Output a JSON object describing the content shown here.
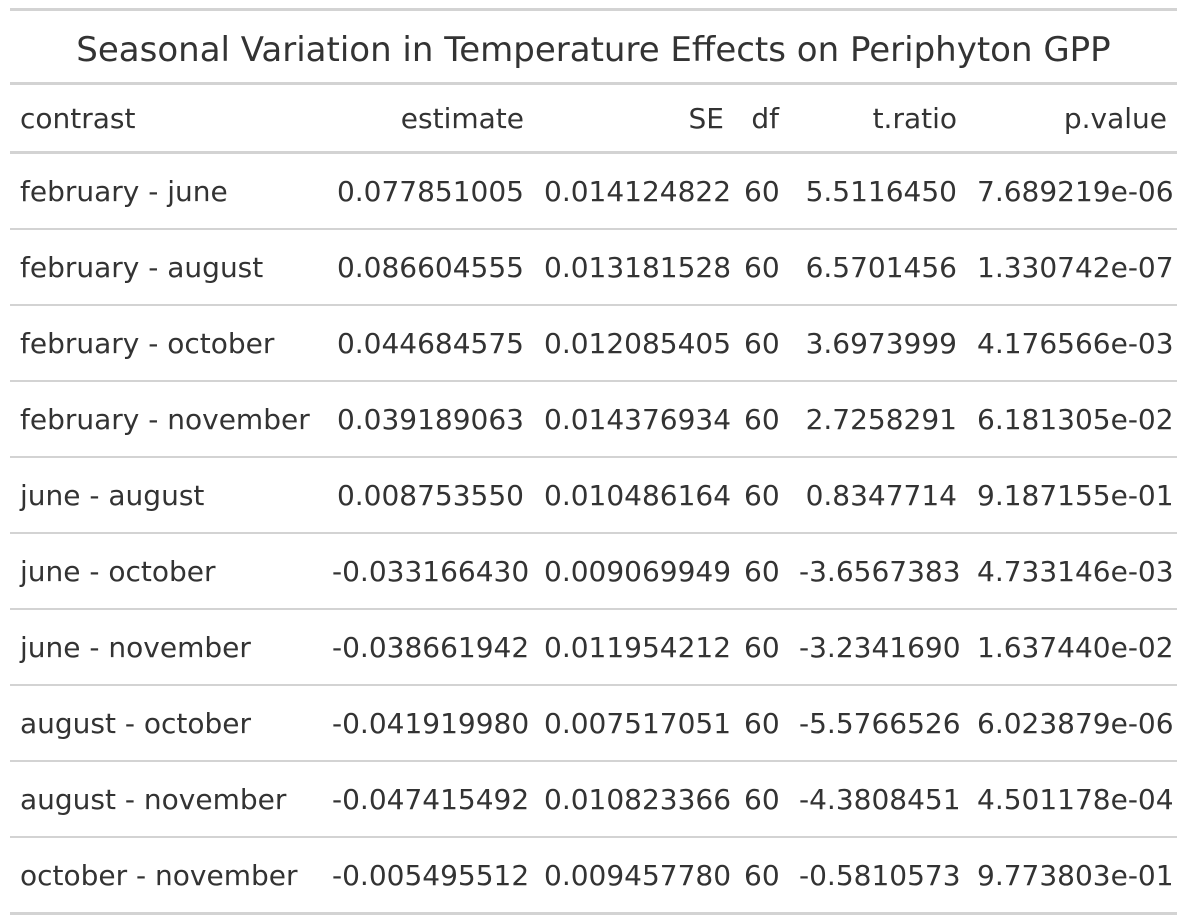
{
  "title": "Seasonal Variation in Temperature Effects on Periphyton GPP",
  "columns": [
    "contrast",
    "estimate",
    "SE",
    "df",
    "t.ratio",
    "p.value"
  ],
  "rows": [
    [
      "february - june",
      "0.077851005",
      "0.014124822",
      "60",
      "5.5116450",
      "7.689219e-06"
    ],
    [
      "february - august",
      "0.086604555",
      "0.013181528",
      "60",
      "6.5701456",
      "1.330742e-07"
    ],
    [
      "february - october",
      "0.044684575",
      "0.012085405",
      "60",
      "3.6973999",
      "4.176566e-03"
    ],
    [
      "february - november",
      "0.039189063",
      "0.014376934",
      "60",
      "2.7258291",
      "6.181305e-02"
    ],
    [
      "june - august",
      "0.008753550",
      "0.010486164",
      "60",
      "0.8347714",
      "9.187155e-01"
    ],
    [
      "june - october",
      "-0.033166430",
      "0.009069949",
      "60",
      "-3.6567383",
      "4.733146e-03"
    ],
    [
      "june - november",
      "-0.038661942",
      "0.011954212",
      "60",
      "-3.2341690",
      "1.637440e-02"
    ],
    [
      "august - october",
      "-0.041919980",
      "0.007517051",
      "60",
      "-5.5766526",
      "6.023879e-06"
    ],
    [
      "august - november",
      "-0.047415492",
      "0.010823366",
      "60",
      "-4.3808451",
      "4.501178e-04"
    ],
    [
      "october - november",
      "-0.005495512",
      "0.009457780",
      "60",
      "-0.5810573",
      "9.773803e-01"
    ]
  ]
}
